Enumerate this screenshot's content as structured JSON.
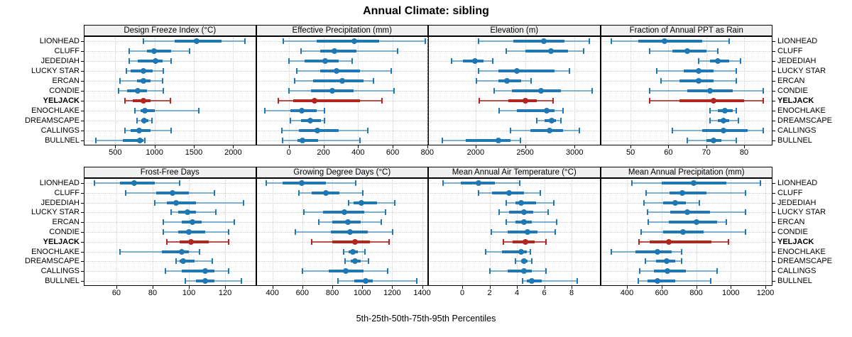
{
  "title": "Annual Climate: sibling",
  "footer": "5th-25th-50th-75th-95th Percentiles",
  "sites": [
    "LIONHEAD",
    "CLUFF",
    "JEDEDIAH",
    "LUCKY STAR",
    "ERCAN",
    "CONDIE",
    "YELJACK",
    "ENOCHLAKE",
    "DREAMSCAPE",
    "CALLINGS",
    "BULLNEL"
  ],
  "highlight_site": "YELJACK",
  "percentiles": [
    5,
    25,
    50,
    75,
    95
  ],
  "colors": {
    "normal": "#1F77B4",
    "normal_light": "rgba(31,119,180,0.55)",
    "highlight": "#B3251E",
    "highlight_light": "rgba(179,37,30,0.8)",
    "strip_bg": "#F0F0F0",
    "grid": "#CFCFCF"
  },
  "chart_data": [
    {
      "type": "dot-whisker",
      "row": 0,
      "col": 0,
      "title": "Design Freeze Index (°C)",
      "xlim": [
        100,
        2290
      ],
      "ticks": [
        500,
        1000,
        1500,
        2000
      ],
      "values": [
        [
          860,
          1260,
          1540,
          1850,
          2150
        ],
        [
          680,
          900,
          990,
          1210,
          1450
        ],
        [
          680,
          790,
          1010,
          1100,
          1210
        ],
        [
          640,
          700,
          860,
          980,
          1110
        ],
        [
          560,
          780,
          860,
          950,
          1100
        ],
        [
          540,
          650,
          790,
          900,
          1110
        ],
        [
          620,
          720,
          860,
          950,
          1200
        ],
        [
          750,
          820,
          880,
          1000,
          1560
        ],
        [
          780,
          830,
          870,
          920,
          970
        ],
        [
          620,
          700,
          800,
          950,
          1210
        ],
        [
          250,
          600,
          810,
          860,
          880
        ]
      ]
    },
    {
      "type": "dot-whisker",
      "row": 0,
      "col": 1,
      "title": "Effective Precipitation (mm)",
      "xlim": [
        -190,
        805
      ],
      "ticks": [
        0,
        200,
        400,
        600,
        800
      ],
      "values": [
        [
          -30,
          160,
          380,
          520,
          790
        ],
        [
          70,
          180,
          265,
          390,
          630
        ],
        [
          0,
          90,
          210,
          290,
          365
        ],
        [
          45,
          180,
          275,
          410,
          590
        ],
        [
          35,
          140,
          310,
          430,
          490
        ],
        [
          0,
          130,
          250,
          375,
          610
        ],
        [
          -60,
          25,
          150,
          410,
          540
        ],
        [
          -140,
          10,
          75,
          160,
          205
        ],
        [
          10,
          70,
          125,
          185,
          205
        ],
        [
          -40,
          60,
          165,
          290,
          455
        ],
        [
          -35,
          50,
          80,
          170,
          410
        ]
      ]
    },
    {
      "type": "dot-whisker",
      "row": 0,
      "col": 2,
      "title": "Elevation (m)",
      "xlim": [
        1520,
        3260
      ],
      "ticks": [
        2000,
        2500,
        3000
      ],
      "values": [
        [
          2030,
          2380,
          2690,
          2900,
          3150
        ],
        [
          2310,
          2500,
          2760,
          2930,
          3090
        ],
        [
          1760,
          1870,
          1990,
          2080,
          2170
        ],
        [
          2030,
          2230,
          2420,
          2800,
          2950
        ],
        [
          2010,
          2230,
          2320,
          2460,
          2560
        ],
        [
          2190,
          2370,
          2660,
          2860,
          3180
        ],
        [
          2040,
          2330,
          2500,
          2620,
          2780
        ],
        [
          2240,
          2420,
          2720,
          2800,
          2880
        ],
        [
          2620,
          2700,
          2770,
          2810,
          2860
        ],
        [
          2350,
          2550,
          2750,
          2880,
          3050
        ],
        [
          1660,
          1900,
          2230,
          2350,
          2450
        ]
      ]
    },
    {
      "type": "dot-whisker",
      "row": 0,
      "col": 3,
      "title": "Fraction of Annual PPT as Rain",
      "xlim": [
        42,
        87.5
      ],
      "ticks": [
        50,
        60,
        70,
        80
      ],
      "values": [
        [
          45,
          52,
          59,
          69,
          76
        ],
        [
          55,
          61,
          65,
          70,
          73
        ],
        [
          68,
          71,
          73,
          76,
          79
        ],
        [
          57,
          64,
          68,
          72,
          78
        ],
        [
          58,
          63,
          68,
          72,
          78
        ],
        [
          55,
          65,
          71,
          77,
          85
        ],
        [
          55,
          63,
          72,
          80,
          85
        ],
        [
          71,
          73,
          75,
          77,
          78
        ],
        [
          71,
          73,
          74.5,
          76,
          78.5
        ],
        [
          61,
          69,
          74.5,
          81,
          85
        ],
        [
          65,
          70,
          72,
          74,
          78
        ]
      ]
    },
    {
      "type": "dot-whisker",
      "row": 1,
      "col": 0,
      "title": "Frost-Free Days",
      "xlim": [
        42,
        137
      ],
      "ticks": [
        60,
        80,
        100,
        120
      ],
      "values": [
        [
          48,
          62,
          70,
          81,
          95
        ],
        [
          65,
          82,
          91,
          100,
          114
        ],
        [
          81,
          88,
          93,
          104,
          130
        ],
        [
          90,
          94,
          99,
          104,
          115
        ],
        [
          86,
          96,
          102,
          107,
          125
        ],
        [
          86,
          94,
          100,
          109,
          122
        ],
        [
          88,
          95,
          101,
          111,
          122
        ],
        [
          62,
          85,
          96,
          100,
          106
        ],
        [
          93,
          95,
          97,
          103,
          113
        ],
        [
          87,
          96,
          109,
          114,
          122
        ],
        [
          98,
          104,
          109,
          114,
          129
        ]
      ]
    },
    {
      "type": "dot-whisker",
      "row": 1,
      "col": 1,
      "title": "Growing Degree Days (°C)",
      "xlim": [
        290,
        1440
      ],
      "ticks": [
        400,
        600,
        800,
        1000,
        1200,
        1400
      ],
      "values": [
        [
          360,
          470,
          595,
          755,
          955
        ],
        [
          575,
          660,
          755,
          845,
          1005
        ],
        [
          910,
          940,
          995,
          1100,
          1215
        ],
        [
          610,
          740,
          880,
          1015,
          1155
        ],
        [
          710,
          800,
          905,
          990,
          1125
        ],
        [
          555,
          790,
          920,
          1035,
          1205
        ],
        [
          660,
          800,
          950,
          1050,
          1180
        ],
        [
          875,
          910,
          935,
          970,
          1020
        ],
        [
          885,
          925,
          950,
          990,
          1040
        ],
        [
          600,
          775,
          890,
          1010,
          1170
        ],
        [
          840,
          945,
          1025,
          1070,
          1365
        ]
      ]
    },
    {
      "type": "dot-whisker",
      "row": 1,
      "col": 2,
      "title": "Mean Annual Air Temperature (°C)",
      "xlim": [
        -2.5,
        10.1
      ],
      "ticks": [
        0,
        2,
        4,
        6,
        8
      ],
      "values": [
        [
          -1.4,
          -0.1,
          1.2,
          2.4,
          4.2
        ],
        [
          1.2,
          2.2,
          3.4,
          4.5,
          5.7
        ],
        [
          3.2,
          3.9,
          4.3,
          5.4,
          6.7
        ],
        [
          2.7,
          3.4,
          4.5,
          5.2,
          6.3
        ],
        [
          3.2,
          3.9,
          4.5,
          5.1,
          6.9
        ],
        [
          2.1,
          3.3,
          4.8,
          5.5,
          6.8
        ],
        [
          3.0,
          3.7,
          4.6,
          5.3,
          6.1
        ],
        [
          1.7,
          2.9,
          4.3,
          4.7,
          5.0
        ],
        [
          3.9,
          4.3,
          4.5,
          4.8,
          5.1
        ],
        [
          2.0,
          3.3,
          4.5,
          5.1,
          6.1
        ],
        [
          4.4,
          4.7,
          5.1,
          5.8,
          8.4
        ]
      ]
    },
    {
      "type": "dot-whisker",
      "row": 1,
      "col": 3,
      "title": "Mean Annual Precipitation (mm)",
      "xlim": [
        246,
        1241
      ],
      "ticks": [
        400,
        600,
        800,
        1000,
        1200
      ],
      "values": [
        [
          430,
          600,
          785,
          975,
          1170
        ],
        [
          510,
          645,
          720,
          860,
          1085
        ],
        [
          500,
          610,
          680,
          740,
          820
        ],
        [
          520,
          650,
          750,
          880,
          1085
        ],
        [
          525,
          640,
          800,
          920,
          975
        ],
        [
          480,
          610,
          725,
          845,
          1085
        ],
        [
          470,
          530,
          640,
          890,
          985
        ],
        [
          310,
          450,
          575,
          660,
          715
        ],
        [
          505,
          570,
          630,
          680,
          715
        ],
        [
          475,
          555,
          635,
          740,
          920
        ],
        [
          465,
          520,
          575,
          680,
          885
        ]
      ]
    }
  ]
}
